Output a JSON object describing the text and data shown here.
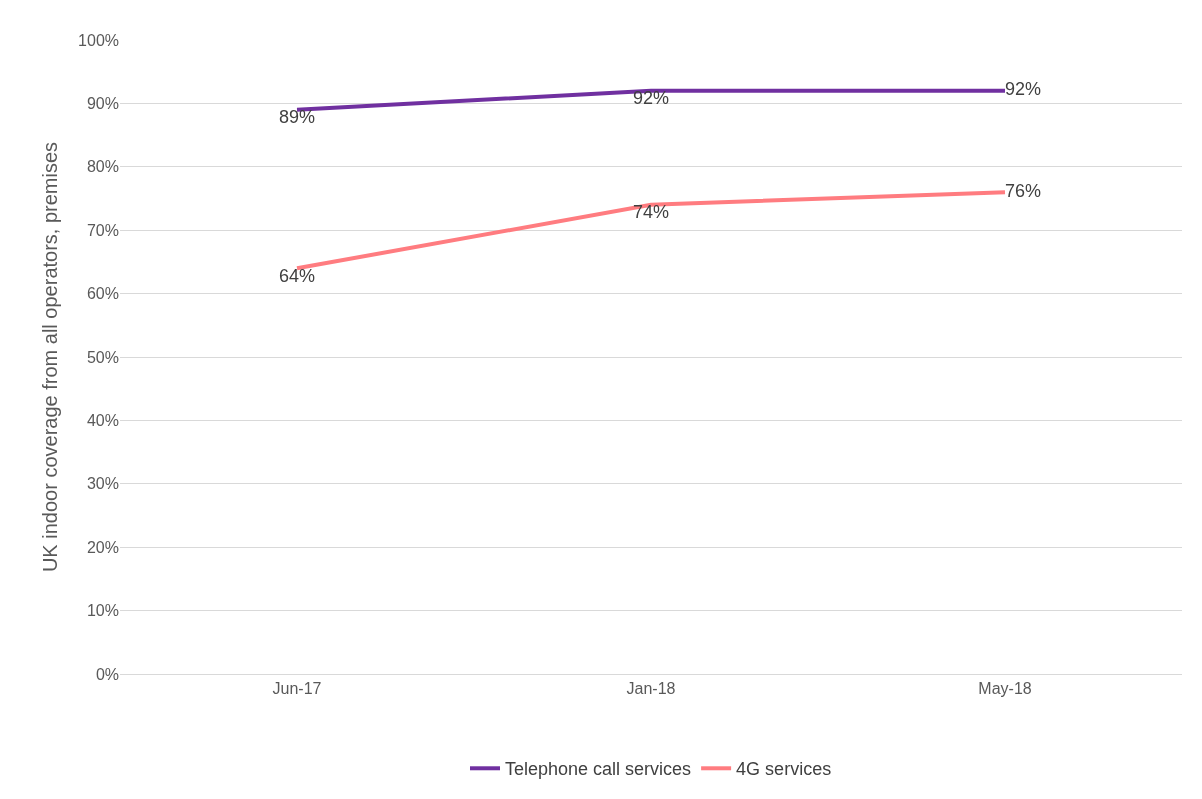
{
  "chart_data": {
    "type": "line",
    "ylabel": "UK indoor coverage from all operators, premises",
    "categories": [
      "Jun-17",
      "Jan-18",
      "May-18"
    ],
    "series": [
      {
        "name": "Telephone call services",
        "color": "#7030a0",
        "values": [
          89,
          92,
          92
        ],
        "value_labels": [
          "89%",
          "92%",
          "92%"
        ]
      },
      {
        "name": "4G services",
        "color": "#ff7c80",
        "values": [
          64,
          74,
          76
        ],
        "value_labels": [
          "64%",
          "74%",
          "76%"
        ]
      }
    ],
    "ylim": [
      0,
      100
    ],
    "yticks": [
      {
        "value": 0,
        "label": "0%"
      },
      {
        "value": 10,
        "label": "10%"
      },
      {
        "value": 20,
        "label": "20%"
      },
      {
        "value": 30,
        "label": "30%"
      },
      {
        "value": 40,
        "label": "40%"
      },
      {
        "value": 50,
        "label": "50%"
      },
      {
        "value": 60,
        "label": "60%"
      },
      {
        "value": 70,
        "label": "70%"
      },
      {
        "value": 80,
        "label": "80%"
      },
      {
        "value": 90,
        "label": "90%"
      },
      {
        "value": 100,
        "label": "100%"
      }
    ],
    "grid": "y",
    "legend": "bottom",
    "marker": "none",
    "line_style": "solid"
  }
}
